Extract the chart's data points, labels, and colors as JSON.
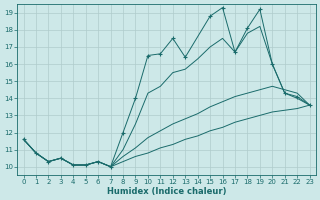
{
  "xlabel": "Humidex (Indice chaleur)",
  "xlim": [
    -0.5,
    23.5
  ],
  "ylim": [
    9.5,
    19.5
  ],
  "xticks": [
    0,
    1,
    2,
    3,
    4,
    5,
    6,
    7,
    8,
    9,
    10,
    11,
    12,
    13,
    14,
    15,
    16,
    17,
    18,
    19,
    20,
    21,
    22,
    23
  ],
  "yticks": [
    10,
    11,
    12,
    13,
    14,
    15,
    16,
    17,
    18,
    19
  ],
  "bg_color": "#cde8e8",
  "grid_color": "#b0cccc",
  "line_color": "#1a6b6b",
  "line1_x": [
    0,
    1,
    2,
    3,
    4,
    5,
    6,
    7,
    8,
    9,
    10,
    11,
    12,
    13,
    15,
    16,
    17,
    18,
    19,
    20,
    21,
    22,
    23
  ],
  "line1_y": [
    11.6,
    10.8,
    10.3,
    10.5,
    10.1,
    10.1,
    10.3,
    10.0,
    12.0,
    14.0,
    16.5,
    16.6,
    17.5,
    16.4,
    18.8,
    19.3,
    16.7,
    18.1,
    19.2,
    16.0,
    14.3,
    14.1,
    13.6
  ],
  "line2_x": [
    0,
    1,
    2,
    3,
    4,
    5,
    6,
    7,
    8,
    9,
    10,
    11,
    12,
    13,
    14,
    15,
    16,
    17,
    18,
    19,
    20,
    21,
    22,
    23
  ],
  "line2_y": [
    11.6,
    10.8,
    10.3,
    10.5,
    10.1,
    10.1,
    10.3,
    10.0,
    11.0,
    12.5,
    14.3,
    14.7,
    15.5,
    15.7,
    16.3,
    17.0,
    17.5,
    16.7,
    17.8,
    18.2,
    16.0,
    14.3,
    14.0,
    13.6
  ],
  "line3_x": [
    0,
    1,
    2,
    3,
    4,
    5,
    6,
    7,
    8,
    9,
    10,
    11,
    12,
    13,
    14,
    15,
    16,
    17,
    18,
    19,
    20,
    21,
    22,
    23
  ],
  "line3_y": [
    11.6,
    10.8,
    10.3,
    10.5,
    10.1,
    10.1,
    10.3,
    10.0,
    10.6,
    11.1,
    11.7,
    12.1,
    12.5,
    12.8,
    13.1,
    13.5,
    13.8,
    14.1,
    14.3,
    14.5,
    14.7,
    14.5,
    14.3,
    13.6
  ],
  "line4_x": [
    0,
    1,
    2,
    3,
    4,
    5,
    6,
    7,
    8,
    9,
    10,
    11,
    12,
    13,
    14,
    15,
    16,
    17,
    18,
    19,
    20,
    21,
    22,
    23
  ],
  "line4_y": [
    11.6,
    10.8,
    10.3,
    10.5,
    10.1,
    10.1,
    10.3,
    10.0,
    10.3,
    10.6,
    10.8,
    11.1,
    11.3,
    11.6,
    11.8,
    12.1,
    12.3,
    12.6,
    12.8,
    13.0,
    13.2,
    13.3,
    13.4,
    13.6
  ]
}
